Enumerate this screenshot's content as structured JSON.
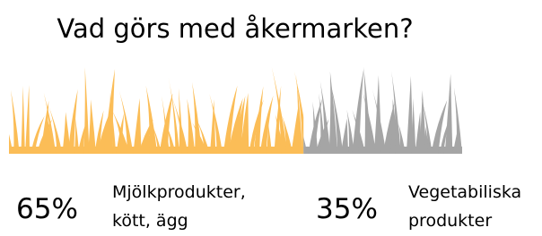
{
  "chart_data": {
    "type": "grass",
    "title": "Vad görs med åkermarken?",
    "categories": [
      "Mjölkprodukter, kött, ägg",
      "Vegetabiliska produkter"
    ],
    "values": [
      65,
      35
    ],
    "value_labels": [
      "65%",
      "35%"
    ],
    "colors": [
      "#fbbd57",
      "#a5a5a5"
    ]
  }
}
